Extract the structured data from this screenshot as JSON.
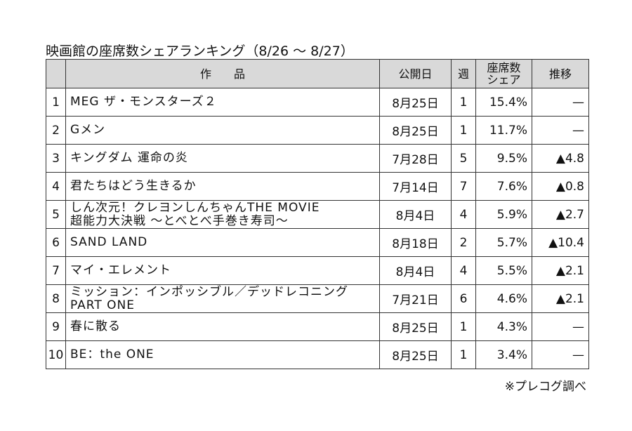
{
  "header": {
    "title": "映画館の座席数シェアランキング（8/26 ～ 8/27）"
  },
  "table": {
    "columns": [
      "",
      "作　　品",
      "公開日",
      "週",
      "座席数\nシェア",
      "推移"
    ],
    "rows": [
      [
        "1",
        "MEG ザ・モンスターズ２",
        "8月25日",
        "1",
        "15.4%",
        "—"
      ],
      [
        "2",
        "Gメン",
        "8月25日",
        "1",
        "11.7%",
        "—"
      ],
      [
        "3",
        "キングダム 運命の炎",
        "7月28日",
        "5",
        "9.5%",
        "▲4.8"
      ],
      [
        "4",
        "君たちはどう生きるか",
        "7月14日",
        "7",
        "7.6%",
        "▲0.8"
      ],
      [
        "5",
        "しん次元！クレヨンしんちゃんTHE MOVIE\n超能力大決戦 ～とべとべ手巻き寿司～",
        "8月4日",
        "4",
        "5.9%",
        "▲2.7"
      ],
      [
        "6",
        "SAND LAND",
        "8月18日",
        "2",
        "5.7%",
        "▲10.4"
      ],
      [
        "7",
        "マイ・エレメント",
        "8月4日",
        "4",
        "5.5%",
        "▲2.1"
      ],
      [
        "8",
        "ミッション：インポッシブル／デッドレコニング\nPART ONE",
        "7月21日",
        "6",
        "4.6%",
        "▲2.1"
      ],
      [
        "9",
        "春に散る",
        "8月25日",
        "1",
        "4.3%",
        "—"
      ],
      [
        "10",
        "BE：the ONE",
        "8月25日",
        "1",
        "3.4%",
        "—"
      ]
    ]
  },
  "footer": {
    "note": "※プレコグ調べ"
  }
}
